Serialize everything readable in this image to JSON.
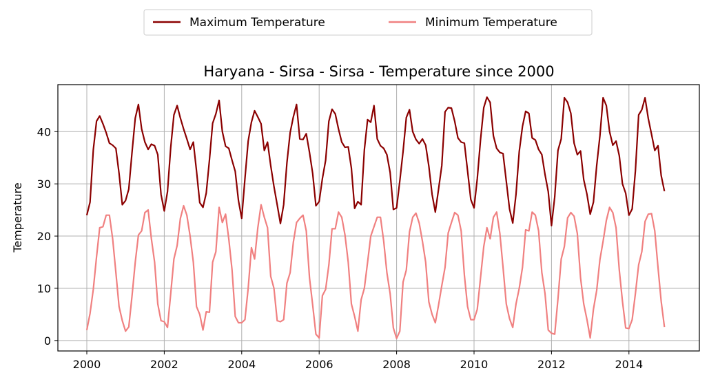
{
  "chart_data": {
    "type": "line",
    "title": "Haryana - Sirsa - Sirsa - Temperature since 2000",
    "xlabel": "",
    "ylabel": "Temperature",
    "xlim": [
      2000,
      2015
    ],
    "ylim": [
      -2,
      49
    ],
    "grid": true,
    "legend_position": "top-center",
    "x_ticks": [
      "2000",
      "2002",
      "2004",
      "2006",
      "2008",
      "2010",
      "2012",
      "2014"
    ],
    "y_ticks": [
      "0",
      "10",
      "20",
      "30",
      "40"
    ],
    "series": [
      {
        "name": "Maximum Temperature",
        "color": "#8b0000",
        "values": [
          24.0,
          26.5,
          36.5,
          42.0,
          43.0,
          41.5,
          39.8,
          37.8,
          37.4,
          36.8,
          32.0,
          26.0,
          26.8,
          29.0,
          36.0,
          42.6,
          45.2,
          40.5,
          38.0,
          36.6,
          37.6,
          37.3,
          35.6,
          28.0,
          24.8,
          28.5,
          37.0,
          43.2,
          45.0,
          42.6,
          40.5,
          38.6,
          36.6,
          38.0,
          32.5,
          26.4,
          25.5,
          28.2,
          34.6,
          41.6,
          43.4,
          46.0,
          40.0,
          37.2,
          36.8,
          34.5,
          32.4,
          26.8,
          23.4,
          31.0,
          38.2,
          41.8,
          44.0,
          42.8,
          41.5,
          36.4,
          38.0,
          33.5,
          29.5,
          26.0,
          22.4,
          26.0,
          34.0,
          39.8,
          42.8,
          45.2,
          38.6,
          38.5,
          39.6,
          36.0,
          32.0,
          25.8,
          26.6,
          31.0,
          34.5,
          42.0,
          44.3,
          43.4,
          40.5,
          38.0,
          37.0,
          37.1,
          33.0,
          25.3,
          26.6,
          26.0,
          36.5,
          42.3,
          41.8,
          45.0,
          38.6,
          37.3,
          36.8,
          35.6,
          32.2,
          25.1,
          25.4,
          30.6,
          36.2,
          42.7,
          44.2,
          40.0,
          38.5,
          37.7,
          38.6,
          37.4,
          33.4,
          28.0,
          24.6,
          29.0,
          33.5,
          43.8,
          44.6,
          44.5,
          42.0,
          38.8,
          38.0,
          37.8,
          32.5,
          27.0,
          25.4,
          31.0,
          38.4,
          44.6,
          46.6,
          45.6,
          39.2,
          36.8,
          36.0,
          35.8,
          30.5,
          25.2,
          22.5,
          28.0,
          36.2,
          41.0,
          43.9,
          43.5,
          38.8,
          38.4,
          36.6,
          35.6,
          31.8,
          28.5,
          22.0,
          27.5,
          36.4,
          38.6,
          46.5,
          45.6,
          43.5,
          37.8,
          35.6,
          36.3,
          30.8,
          28.0,
          24.2,
          26.5,
          33.5,
          39.2,
          46.5,
          45.0,
          40.0,
          37.4,
          38.2,
          35.4,
          30.0,
          28.2,
          24.0,
          25.2,
          32.5,
          43.2,
          44.2,
          46.5,
          42.5,
          39.5,
          36.4,
          37.3,
          31.6,
          28.6
        ]
      },
      {
        "name": "Minimum Temperature",
        "color": "#f08080",
        "values": [
          2.0,
          5.2,
          9.8,
          16.0,
          21.6,
          21.8,
          24.0,
          24.0,
          19.5,
          13.0,
          6.5,
          3.8,
          1.8,
          2.6,
          8.5,
          15.0,
          20.2,
          21.0,
          24.5,
          25.0,
          19.5,
          15.0,
          7.0,
          3.8,
          3.6,
          2.5,
          9.0,
          15.6,
          18.2,
          23.4,
          25.8,
          24.0,
          20.0,
          15.0,
          6.5,
          5.0,
          2.0,
          5.5,
          5.4,
          15.0,
          17.0,
          25.5,
          22.6,
          24.2,
          19.4,
          13.5,
          4.6,
          3.4,
          3.4,
          4.0,
          10.0,
          17.8,
          15.6,
          21.6,
          26.0,
          23.6,
          21.6,
          12.3,
          10.0,
          3.8,
          3.6,
          4.0,
          11.0,
          13.0,
          18.8,
          22.6,
          23.4,
          24.0,
          21.0,
          12.0,
          6.8,
          1.2,
          0.5,
          8.6,
          9.8,
          14.5,
          21.4,
          21.4,
          24.6,
          23.6,
          20.2,
          15.0,
          7.0,
          4.6,
          1.8,
          7.8,
          10.0,
          15.0,
          20.0,
          21.8,
          23.6,
          23.6,
          19.0,
          13.0,
          9.0,
          2.4,
          0.4,
          1.8,
          11.2,
          13.5,
          20.8,
          23.6,
          24.4,
          22.5,
          19.0,
          15.0,
          7.4,
          5.0,
          3.4,
          6.8,
          10.5,
          14.0,
          20.6,
          22.6,
          24.5,
          24.0,
          21.0,
          12.5,
          6.5,
          4.0,
          4.0,
          6.0,
          12.0,
          18.0,
          21.6,
          19.5,
          23.6,
          24.6,
          20.5,
          14.0,
          7.0,
          4.2,
          2.5,
          7.0,
          10.0,
          14.0,
          21.2,
          21.0,
          24.6,
          24.0,
          21.0,
          13.0,
          9.0,
          2.0,
          1.4,
          1.2,
          8.0,
          15.6,
          18.0,
          23.5,
          24.5,
          23.8,
          20.5,
          12.0,
          7.0,
          4.0,
          0.5,
          6.0,
          9.6,
          15.5,
          19.0,
          23.0,
          25.5,
          24.5,
          21.6,
          13.5,
          7.5,
          2.4,
          2.3,
          4.0,
          9.0,
          14.5,
          17.0,
          22.8,
          24.2,
          24.3,
          21.0,
          14.0,
          7.5,
          2.6
        ]
      }
    ]
  }
}
